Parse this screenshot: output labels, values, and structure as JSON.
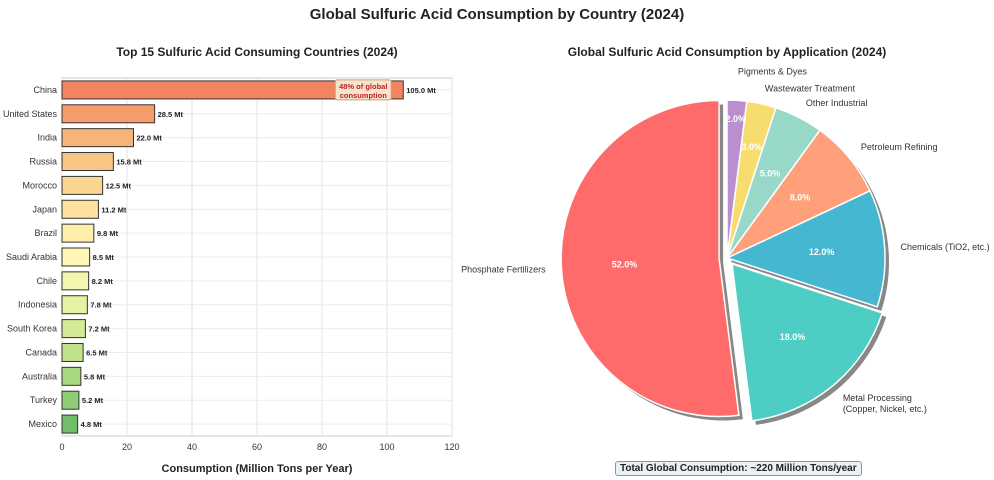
{
  "title": "Global Sulfuric Acid Consumption by Country (2024)",
  "chart_data": [
    {
      "type": "bar",
      "orientation": "horizontal",
      "title": "Top 15 Sulfuric Acid Consuming Countries (2024)",
      "xlabel": "Consumption (Million Tons per Year)",
      "ylabel": "",
      "xlim": [
        0,
        120
      ],
      "xticks": [
        0,
        20,
        40,
        60,
        80,
        100,
        120
      ],
      "grid": true,
      "categories": [
        "China",
        "United States",
        "India",
        "Russia",
        "Morocco",
        "Japan",
        "Brazil",
        "Saudi Arabia",
        "Chile",
        "Indonesia",
        "South Korea",
        "Canada",
        "Australia",
        "Turkey",
        "Mexico"
      ],
      "values": [
        105.0,
        28.5,
        22.0,
        15.8,
        12.5,
        11.2,
        9.8,
        8.5,
        8.2,
        7.8,
        7.2,
        6.5,
        5.8,
        5.2,
        4.8
      ],
      "value_labels": [
        "105.0 Mt",
        "28.5 Mt",
        "22.0 Mt",
        "15.8 Mt",
        "12.5 Mt",
        "11.2 Mt",
        "9.8 Mt",
        "8.5 Mt",
        "8.2 Mt",
        "7.8 Mt",
        "7.2 Mt",
        "6.5 Mt",
        "5.8 Mt",
        "5.2 Mt",
        "4.8 Mt"
      ],
      "colors": [
        "#f4845f",
        "#f69c6b",
        "#f8b377",
        "#fac584",
        "#fbd590",
        "#fce29e",
        "#fdeeac",
        "#fdf6b6",
        "#f3f6ae",
        "#e6f1a1",
        "#d5ea94",
        "#c2e28a",
        "#a9d880",
        "#8ecd78",
        "#72bd6c"
      ],
      "annotation": "48% of global consumption"
    },
    {
      "type": "pie",
      "title": "Global Sulfuric Acid Consumption by Application (2024)",
      "labels": [
        "Phosphate Fertilizers",
        "Metal Processing (Copper, Nickel, etc.)",
        "Chemicals (TiO2, etc.)",
        "Petroleum Refining",
        "Other Industrial",
        "Wastewater Treatment",
        "Pigments & Dyes"
      ],
      "values": [
        52.0,
        18.0,
        12.0,
        8.0,
        5.0,
        3.0,
        2.0
      ],
      "pct_labels": [
        "52.0%",
        "18.0%",
        "12.0%",
        "8.0%",
        "5.0%",
        "3.0%",
        "2.0%"
      ],
      "explode": [
        0.05,
        0.05,
        0,
        0,
        0,
        0,
        0
      ],
      "colors": [
        "#ff6b6b",
        "#4ecdc4",
        "#45b7d1",
        "#ffa07a",
        "#98d8c8",
        "#f7dc6f",
        "#bb8fce"
      ],
      "startangle": 90
    }
  ],
  "footer": "Total Global Consumption: ~220 Million Tons/year"
}
